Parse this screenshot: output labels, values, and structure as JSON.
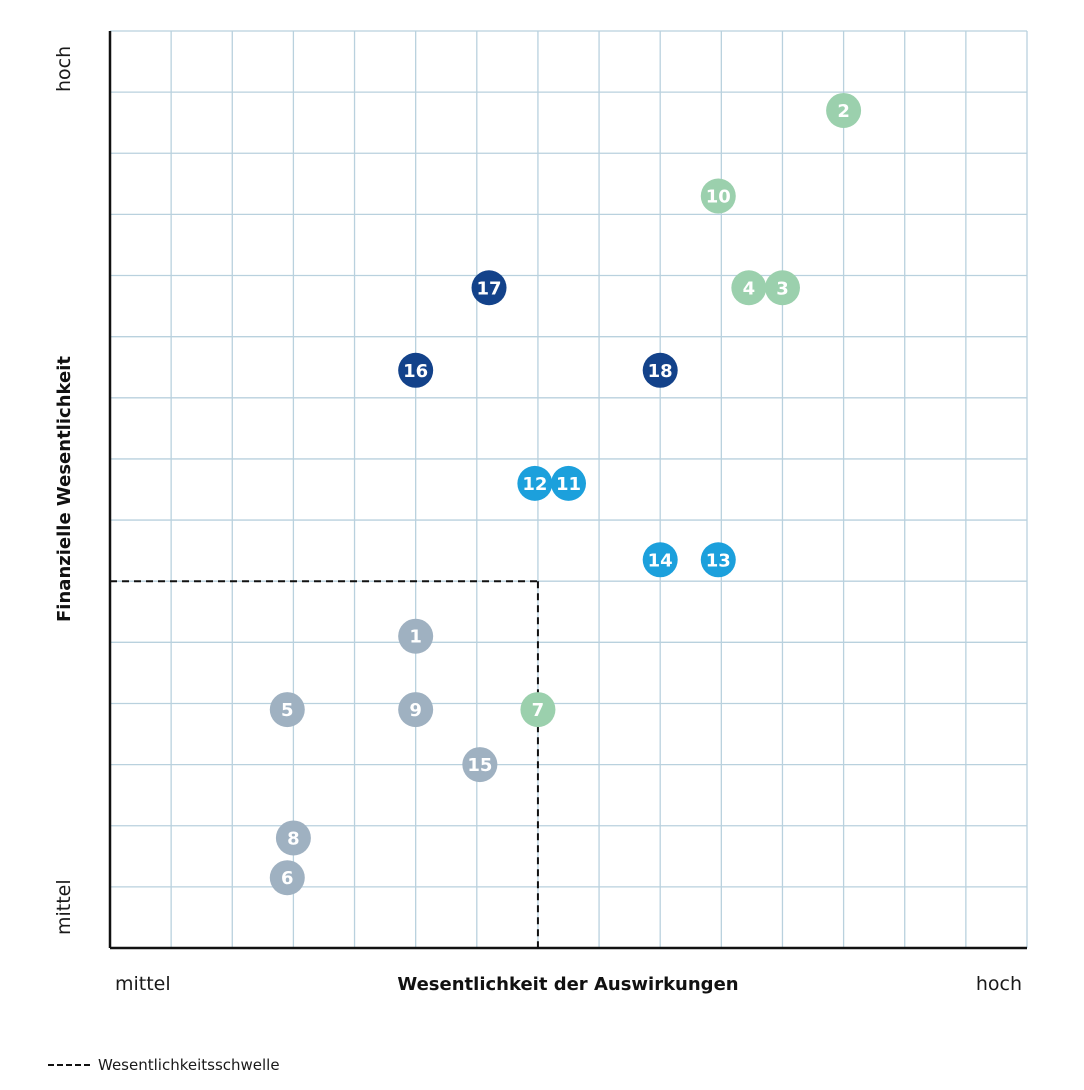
{
  "chart_data": {
    "type": "scatter",
    "xlabel": "Wesentlichkeit der Auswirkungen",
    "ylabel": "Finanzielle Wesentlichkeit",
    "x_tick_labels": {
      "low": "mittel",
      "high": "hoch"
    },
    "y_tick_labels": {
      "low": "mittel",
      "high": "hoch"
    },
    "xlim": [
      0,
      15
    ],
    "ylim": [
      0,
      15
    ],
    "grid": true,
    "threshold": {
      "x": 7,
      "y": 6,
      "label": "Wesentlichkeitsschwelle"
    },
    "colors": {
      "grey": "#9fb1c1",
      "green": "#9bd0ad",
      "light_blue": "#1ca0dc",
      "dark_blue": "#13428a"
    },
    "points": [
      {
        "label": "1",
        "x": 5.0,
        "y": 5.1,
        "color": "grey"
      },
      {
        "label": "2",
        "x": 12.0,
        "y": 13.7,
        "color": "green"
      },
      {
        "label": "3",
        "x": 11.0,
        "y": 10.8,
        "color": "green"
      },
      {
        "label": "4",
        "x": 10.45,
        "y": 10.8,
        "color": "green"
      },
      {
        "label": "5",
        "x": 2.9,
        "y": 3.9,
        "color": "grey"
      },
      {
        "label": "6",
        "x": 2.9,
        "y": 1.15,
        "color": "grey"
      },
      {
        "label": "7",
        "x": 7.0,
        "y": 3.9,
        "color": "green"
      },
      {
        "label": "8",
        "x": 3.0,
        "y": 1.8,
        "color": "grey"
      },
      {
        "label": "9",
        "x": 5.0,
        "y": 3.9,
        "color": "grey"
      },
      {
        "label": "10",
        "x": 9.95,
        "y": 12.3,
        "color": "green"
      },
      {
        "label": "11",
        "x": 7.5,
        "y": 7.6,
        "color": "light_blue"
      },
      {
        "label": "12",
        "x": 6.95,
        "y": 7.6,
        "color": "light_blue"
      },
      {
        "label": "13",
        "x": 9.95,
        "y": 6.35,
        "color": "light_blue"
      },
      {
        "label": "14",
        "x": 9.0,
        "y": 6.35,
        "color": "light_blue"
      },
      {
        "label": "15",
        "x": 6.05,
        "y": 3.0,
        "color": "grey"
      },
      {
        "label": "16",
        "x": 5.0,
        "y": 9.45,
        "color": "dark_blue"
      },
      {
        "label": "17",
        "x": 6.2,
        "y": 10.8,
        "color": "dark_blue"
      },
      {
        "label": "18",
        "x": 9.0,
        "y": 9.45,
        "color": "dark_blue"
      }
    ]
  }
}
